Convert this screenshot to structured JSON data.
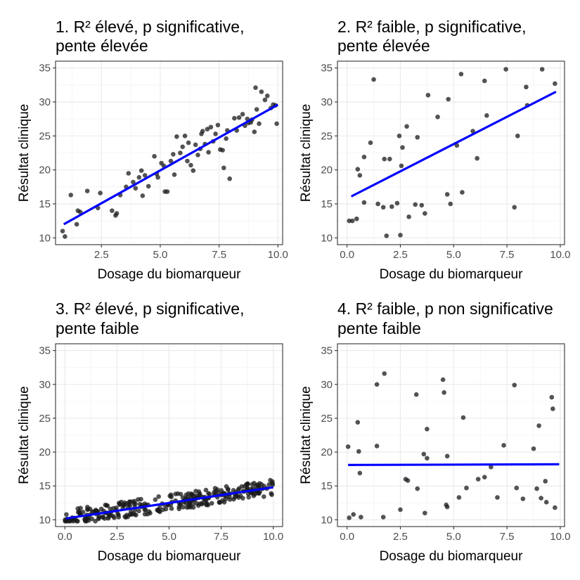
{
  "chart_data": [
    {
      "type": "scatter",
      "title_lines": [
        "1. R² élevé, p significative,",
        "pente élevée"
      ],
      "xlabel": "Dosage du biomarqueur",
      "ylabel": "Résultat clinique",
      "xlim": [
        0.55,
        10.2
      ],
      "ylim": [
        9.0,
        36.0
      ],
      "x_ticks": [
        2.5,
        5.0,
        7.5,
        10.0
      ],
      "x_tick_labels": [
        "2.5",
        "5.0",
        "7.5",
        "10.0"
      ],
      "y_ticks": [
        10,
        15,
        20,
        25,
        30,
        35
      ],
      "y_tick_labels": [
        "10",
        "15",
        "20",
        "25",
        "30",
        "35"
      ],
      "fit_line": {
        "x": [
          0.9,
          10.0
        ],
        "y": [
          12.0,
          29.6
        ]
      },
      "points": [
        [
          0.85,
          11.0
        ],
        [
          0.95,
          10.2
        ],
        [
          1.2,
          16.3
        ],
        [
          1.45,
          12.0
        ],
        [
          1.5,
          14.0
        ],
        [
          1.6,
          13.8
        ],
        [
          1.9,
          16.9
        ],
        [
          2.35,
          14.4
        ],
        [
          2.45,
          16.6
        ],
        [
          2.95,
          14.0
        ],
        [
          3.1,
          13.3
        ],
        [
          3.15,
          13.6
        ],
        [
          3.3,
          16.3
        ],
        [
          3.55,
          17.5
        ],
        [
          3.65,
          19.5
        ],
        [
          3.85,
          18.2
        ],
        [
          3.95,
          17.3
        ],
        [
          4.1,
          18.9
        ],
        [
          4.2,
          19.9
        ],
        [
          4.25,
          16.2
        ],
        [
          4.35,
          19.2
        ],
        [
          4.5,
          17.6
        ],
        [
          4.75,
          22.0
        ],
        [
          4.85,
          19.4
        ],
        [
          4.9,
          18.9
        ],
        [
          5.05,
          21.0
        ],
        [
          5.15,
          20.6
        ],
        [
          5.2,
          16.8
        ],
        [
          5.3,
          16.8
        ],
        [
          5.45,
          21.3
        ],
        [
          5.55,
          22.3
        ],
        [
          5.6,
          19.3
        ],
        [
          5.7,
          24.9
        ],
        [
          5.85,
          22.5
        ],
        [
          5.95,
          23.4
        ],
        [
          6.05,
          25.0
        ],
        [
          6.15,
          21.3
        ],
        [
          6.2,
          24.0
        ],
        [
          6.3,
          20.7
        ],
        [
          6.4,
          19.9
        ],
        [
          6.5,
          23.7
        ],
        [
          6.6,
          22.2
        ],
        [
          6.7,
          23.1
        ],
        [
          6.75,
          25.3
        ],
        [
          6.8,
          25.7
        ],
        [
          6.9,
          23.8
        ],
        [
          7.0,
          26.0
        ],
        [
          7.05,
          22.6
        ],
        [
          7.15,
          26.3
        ],
        [
          7.25,
          24.2
        ],
        [
          7.35,
          25.3
        ],
        [
          7.45,
          26.6
        ],
        [
          7.55,
          23.0
        ],
        [
          7.65,
          22.9
        ],
        [
          7.7,
          20.3
        ],
        [
          7.8,
          24.6
        ],
        [
          7.85,
          25.8
        ],
        [
          7.95,
          18.7
        ],
        [
          8.15,
          27.6
        ],
        [
          8.25,
          25.8
        ],
        [
          8.35,
          27.7
        ],
        [
          8.5,
          28.2
        ],
        [
          8.6,
          26.5
        ],
        [
          8.7,
          27.5
        ],
        [
          8.75,
          26.9
        ],
        [
          8.85,
          27.0
        ],
        [
          8.9,
          27.4
        ],
        [
          9.0,
          25.6
        ],
        [
          9.05,
          32.1
        ],
        [
          9.1,
          28.9
        ],
        [
          9.2,
          26.8
        ],
        [
          9.3,
          31.5
        ],
        [
          9.45,
          30.3
        ],
        [
          9.55,
          30.9
        ],
        [
          9.7,
          29.1
        ],
        [
          9.8,
          29.6
        ],
        [
          9.9,
          29.5
        ],
        [
          9.95,
          26.8
        ]
      ]
    },
    {
      "type": "scatter",
      "title_lines": [
        "2. R² faible, p significative,",
        "pente élevée"
      ],
      "xlabel": "Dosage du biomarqueur",
      "ylabel": "Résultat clinique",
      "xlim": [
        -0.45,
        10.2
      ],
      "ylim": [
        9.0,
        36.0
      ],
      "x_ticks": [
        0.0,
        2.5,
        5.0,
        7.5,
        10.0
      ],
      "x_tick_labels": [
        "0.0",
        "2.5",
        "5.0",
        "7.5",
        "10.0"
      ],
      "y_ticks": [
        10,
        15,
        20,
        25,
        30,
        35
      ],
      "y_tick_labels": [
        "10",
        "15",
        "20",
        "25",
        "30",
        "35"
      ],
      "fit_line": {
        "x": [
          0.2,
          9.8
        ],
        "y": [
          16.1,
          31.5
        ]
      },
      "points": [
        [
          0.1,
          12.5
        ],
        [
          0.25,
          12.5
        ],
        [
          0.45,
          12.8
        ],
        [
          0.5,
          20.1
        ],
        [
          0.6,
          19.2
        ],
        [
          0.8,
          21.9
        ],
        [
          0.8,
          15.2
        ],
        [
          1.1,
          24.0
        ],
        [
          1.25,
          33.3
        ],
        [
          1.45,
          15.0
        ],
        [
          1.7,
          14.5
        ],
        [
          1.75,
          21.6
        ],
        [
          1.85,
          10.3
        ],
        [
          2.0,
          21.6
        ],
        [
          2.1,
          14.6
        ],
        [
          2.35,
          15.1
        ],
        [
          2.45,
          25.0
        ],
        [
          2.5,
          10.4
        ],
        [
          2.55,
          20.6
        ],
        [
          2.6,
          23.3
        ],
        [
          2.8,
          26.4
        ],
        [
          2.9,
          13.1
        ],
        [
          3.2,
          14.9
        ],
        [
          3.3,
          24.8
        ],
        [
          3.5,
          14.8
        ],
        [
          3.65,
          13.6
        ],
        [
          3.8,
          31.0
        ],
        [
          4.25,
          27.8
        ],
        [
          4.7,
          16.4
        ],
        [
          4.75,
          30.4
        ],
        [
          4.85,
          15.0
        ],
        [
          5.15,
          23.6
        ],
        [
          5.35,
          34.1
        ],
        [
          5.4,
          16.7
        ],
        [
          5.9,
          25.7
        ],
        [
          6.1,
          21.7
        ],
        [
          6.45,
          33.1
        ],
        [
          6.55,
          28.0
        ],
        [
          7.45,
          34.8
        ],
        [
          7.85,
          14.5
        ],
        [
          8.0,
          25.0
        ],
        [
          8.4,
          32.2
        ],
        [
          8.45,
          29.5
        ],
        [
          9.15,
          34.8
        ],
        [
          9.75,
          32.7
        ]
      ]
    },
    {
      "type": "scatter",
      "title_lines": [
        "3. R² élevé, p significative,",
        "pente faible"
      ],
      "xlabel": "Dosage du biomarqueur",
      "ylabel": "Résultat clinique",
      "xlim": [
        -0.45,
        10.45
      ],
      "ylim": [
        9.0,
        36.0
      ],
      "x_ticks": [
        0.0,
        2.5,
        5.0,
        7.5,
        10.0
      ],
      "x_tick_labels": [
        "0.0",
        "2.5",
        "5.0",
        "7.5",
        "10.0"
      ],
      "y_ticks": [
        10,
        15,
        20,
        25,
        30,
        35
      ],
      "y_tick_labels": [
        "10",
        "15",
        "20",
        "25",
        "30",
        "35"
      ],
      "fit_line": {
        "x": [
          0.05,
          10.0
        ],
        "y": [
          10.2,
          14.8
        ]
      },
      "points": "generated",
      "n_points": 300
    },
    {
      "type": "scatter",
      "title_lines": [
        "4. R² faible, p non significative",
        "pente faible"
      ],
      "xlabel": "Dosage du biomarqueur",
      "ylabel": "Résultat clinique",
      "xlim": [
        -0.45,
        10.2
      ],
      "ylim": [
        9.0,
        36.0
      ],
      "x_ticks": [
        0.0,
        2.5,
        5.0,
        7.5,
        10.0
      ],
      "x_tick_labels": [
        "0.0",
        "2.5",
        "5.0",
        "7.5",
        "10.0"
      ],
      "y_ticks": [
        10,
        15,
        20,
        25,
        30,
        35
      ],
      "y_tick_labels": [
        "10",
        "15",
        "20",
        "25",
        "30",
        "35"
      ],
      "fit_line": {
        "x": [
          0.05,
          9.95
        ],
        "y": [
          18.1,
          18.2
        ]
      },
      "points": [
        [
          0.05,
          20.8
        ],
        [
          0.1,
          10.3
        ],
        [
          0.3,
          10.8
        ],
        [
          0.5,
          24.4
        ],
        [
          0.55,
          20.1
        ],
        [
          0.6,
          16.9
        ],
        [
          0.65,
          10.4
        ],
        [
          1.4,
          30.0
        ],
        [
          1.4,
          20.9
        ],
        [
          1.7,
          10.4
        ],
        [
          1.75,
          31.6
        ],
        [
          2.5,
          11.5
        ],
        [
          2.75,
          16.0
        ],
        [
          2.85,
          15.8
        ],
        [
          3.25,
          28.5
        ],
        [
          3.3,
          14.6
        ],
        [
          3.6,
          19.7
        ],
        [
          3.65,
          11.0
        ],
        [
          3.75,
          23.4
        ],
        [
          3.75,
          19.1
        ],
        [
          4.5,
          30.7
        ],
        [
          4.55,
          28.8
        ],
        [
          4.65,
          12.2
        ],
        [
          4.7,
          11.9
        ],
        [
          4.7,
          19.4
        ],
        [
          5.25,
          13.3
        ],
        [
          5.45,
          25.1
        ],
        [
          5.6,
          14.7
        ],
        [
          6.15,
          16.0
        ],
        [
          6.45,
          16.3
        ],
        [
          6.75,
          17.8
        ],
        [
          7.05,
          13.3
        ],
        [
          7.35,
          21.0
        ],
        [
          7.85,
          29.9
        ],
        [
          7.95,
          14.7
        ],
        [
          8.25,
          13.1
        ],
        [
          8.75,
          20.5
        ],
        [
          8.9,
          14.6
        ],
        [
          9.0,
          23.9
        ],
        [
          9.1,
          13.2
        ],
        [
          9.3,
          15.7
        ],
        [
          9.35,
          12.6
        ],
        [
          9.6,
          28.1
        ],
        [
          9.65,
          26.4
        ],
        [
          9.75,
          11.8
        ]
      ]
    }
  ],
  "colors": {
    "line": "#0000ff",
    "points": "#1a1a1a",
    "grid_major": "#ebebeb",
    "grid_minor": "#f4f4f4",
    "border": "#333333",
    "tick_text": "#4d4d4d"
  }
}
